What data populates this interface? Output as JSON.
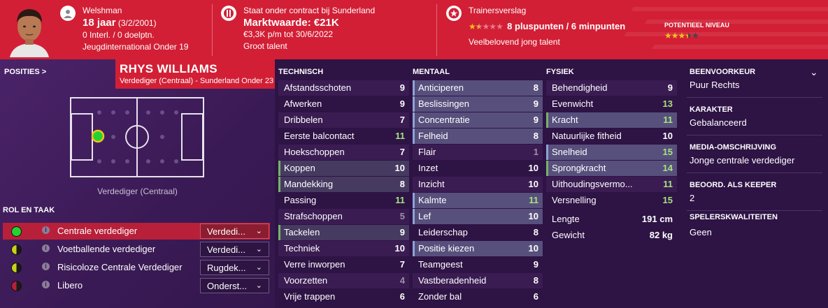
{
  "header": {
    "nationality": "Welshman",
    "age": "18 jaar",
    "dob": "(3/2/2001)",
    "caps": "0 Interl. / 0 doelptn.",
    "youth_intl": "Jeugdinternational Onder 19",
    "contract": "Staat onder contract bij Sunderland",
    "value": "Marktwaarde: €21K",
    "wage": "€3,3K p/m tot 30/6/2022",
    "talent": "Groot talent",
    "report_title": "Trainersverslag",
    "report_points": "8 pluspunten / 6 minpunten",
    "report_desc": "Veelbelovend jong talent",
    "potential_label": "POTENTIEEL NIVEAU",
    "current_stars": 1.5,
    "potential_stars": 3.5
  },
  "player": {
    "name": "RHYS WILLIAMS",
    "subtitle": "Verdediger (Centraal) - Sunderland Onder 23"
  },
  "positions": {
    "title": "POSITIES >",
    "label": "Verdediger (Centraal)"
  },
  "roles": {
    "title": "ROL EN TAAK",
    "items": [
      {
        "name": "Centrale verdediger",
        "duty": "Verdedi...",
        "colors": [
          "#22d332",
          "#22d332"
        ]
      },
      {
        "name": "Voetballende verdediger",
        "duty": "Verdedi...",
        "colors": [
          "#c8d21a",
          "#1a1a1a"
        ]
      },
      {
        "name": "Risicoloze Centrale Verdediger",
        "duty": "Rugdek...",
        "colors": [
          "#c8d21a",
          "#1a1a1a"
        ]
      },
      {
        "name": "Libero",
        "duty": "Onderst...",
        "colors": [
          "#b8203a",
          "#1a1a1a"
        ]
      }
    ],
    "info_glyph": "i",
    "chevron": "⌄"
  },
  "technisch": {
    "title": "TECHNISCH",
    "items": [
      {
        "label": "Afstandsschoten",
        "value": "9"
      },
      {
        "label": "Afwerken",
        "value": "9"
      },
      {
        "label": "Dribbelen",
        "value": "7"
      },
      {
        "label": "Eerste balcontact",
        "value": "11"
      },
      {
        "label": "Hoekschoppen",
        "value": "7"
      },
      {
        "label": "Koppen",
        "value": "10"
      },
      {
        "label": "Mandekking",
        "value": "8"
      },
      {
        "label": "Passing",
        "value": "11"
      },
      {
        "label": "Strafschoppen",
        "value": "5"
      },
      {
        "label": "Tackelen",
        "value": "9"
      },
      {
        "label": "Techniek",
        "value": "10"
      },
      {
        "label": "Verre inworpen",
        "value": "7"
      },
      {
        "label": "Voorzetten",
        "value": "4"
      },
      {
        "label": "Vrije trappen",
        "value": "6"
      }
    ]
  },
  "mentaal": {
    "title": "MENTAAL",
    "items": [
      {
        "label": "Anticiperen",
        "value": "8"
      },
      {
        "label": "Beslissingen",
        "value": "9"
      },
      {
        "label": "Concentratie",
        "value": "9"
      },
      {
        "label": "Felheid",
        "value": "8"
      },
      {
        "label": "Flair",
        "value": "1"
      },
      {
        "label": "Inzet",
        "value": "10"
      },
      {
        "label": "Inzicht",
        "value": "10"
      },
      {
        "label": "Kalmte",
        "value": "11"
      },
      {
        "label": "Lef",
        "value": "10"
      },
      {
        "label": "Leiderschap",
        "value": "8"
      },
      {
        "label": "Positie kiezen",
        "value": "10"
      },
      {
        "label": "Teamgeest",
        "value": "9"
      },
      {
        "label": "Vastberadenheid",
        "value": "8"
      },
      {
        "label": "Zonder bal",
        "value": "6"
      }
    ]
  },
  "fysiek": {
    "title": "FYSIEK",
    "items": [
      {
        "label": "Behendigheid",
        "value": "9"
      },
      {
        "label": "Evenwicht",
        "value": "13"
      },
      {
        "label": "Kracht",
        "value": "11"
      },
      {
        "label": "Natuurlijke fitheid",
        "value": "10"
      },
      {
        "label": "Snelheid",
        "value": "15"
      },
      {
        "label": "Sprongkracht",
        "value": "14"
      },
      {
        "label": "Uithoudingsvermo...",
        "value": "11"
      },
      {
        "label": "Versnelling",
        "value": "15"
      }
    ],
    "length_label": "Lengte",
    "length_value": "191 cm",
    "weight_label": "Gewicht",
    "weight_value": "82 kg"
  },
  "side": {
    "foot_title": "BEENVOORKEUR",
    "foot_value": "Puur Rechts",
    "char_title": "KARAKTER",
    "char_value": "Gebalanceerd",
    "media_title": "MEDIA-OMSCHRIJVING",
    "media_value": "Jonge centrale verdediger",
    "keeper_title": "BEOORD. ALS KEEPER",
    "keeper_value": "2",
    "qual_title": "SPELERSKWALITEITEN",
    "qual_value": "Geen",
    "chevron": "⌄"
  }
}
